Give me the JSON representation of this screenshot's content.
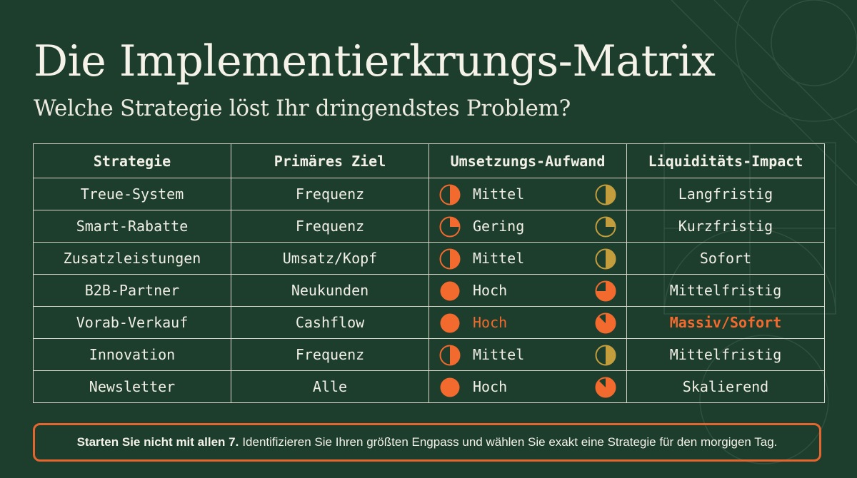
{
  "title": "Die Implementierkrungs-Matrix",
  "subtitle": "Welche Strategie löst Ihr dringendstes Problem?",
  "colors": {
    "background": "#1d3d2d",
    "orange": "#f26a2e",
    "gold": "#c49e3c",
    "text": "#f1efe6"
  },
  "table": {
    "headers": [
      "Strategie",
      "Primäres Ziel",
      "Umsetzungs-Aufwand",
      "Liquiditäts-Impact"
    ],
    "rows": [
      {
        "strategy": "Treue-System",
        "goal": "Frequenz",
        "effort": "Mittel",
        "effort_level": 0.5,
        "impact": "Langfristig",
        "impact_level": 0.5,
        "highlight": false
      },
      {
        "strategy": "Smart-Rabatte",
        "goal": "Frequenz",
        "effort": "Gering",
        "effort_level": 0.25,
        "impact": "Kurzfristig",
        "impact_level": 0.25,
        "highlight": false
      },
      {
        "strategy": "Zusatzleistungen",
        "goal": "Umsatz/Kopf",
        "effort": "Mittel",
        "effort_level": 0.5,
        "impact": "Sofort",
        "impact_level": 0.5,
        "highlight": false
      },
      {
        "strategy": "B2B-Partner",
        "goal": "Neukunden",
        "effort": "Hoch",
        "effort_level": 1.0,
        "impact": "Mittelfristig",
        "impact_level": 0.75,
        "highlight": false
      },
      {
        "strategy": "Vorab-Verkauf",
        "goal": "Cashflow",
        "effort": "Hoch",
        "effort_level": 1.0,
        "impact": "Massiv/Sofort",
        "impact_level": 0.875,
        "highlight": true
      },
      {
        "strategy": "Innovation",
        "goal": "Frequenz",
        "effort": "Mittel",
        "effort_level": 0.5,
        "impact": "Mittelfristig",
        "impact_level": 0.5,
        "highlight": false
      },
      {
        "strategy": "Newsletter",
        "goal": "Alle",
        "effort": "Hoch",
        "effort_level": 1.0,
        "impact": "Skalierend",
        "impact_level": 0.875,
        "highlight": false
      }
    ]
  },
  "callout": {
    "bold": "Starten Sie nicht mit allen 7.",
    "text": "Identifizieren Sie Ihren größten Engpass und wählen Sie exakt eine Strategie für den morgigen Tag."
  }
}
